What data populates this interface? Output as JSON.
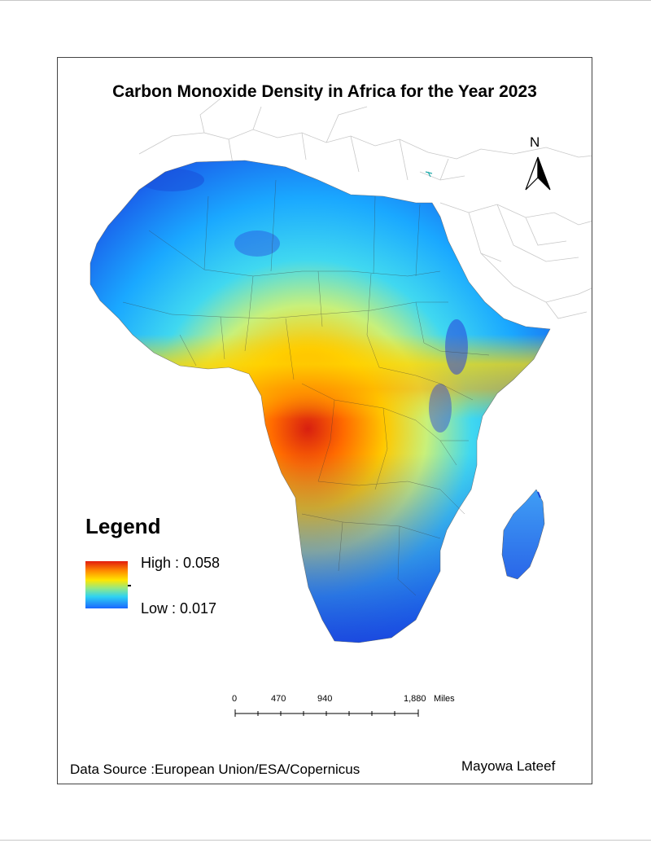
{
  "title": "Carbon Monoxide Density in Africa for the Year 2023",
  "north_arrow": {
    "label": "N",
    "icon": "north-arrow-icon"
  },
  "legend": {
    "title": "Legend",
    "high_label": "High : 0.058",
    "low_label": "Low : 0.017",
    "colors": [
      "#e21b0f",
      "#ff8a00",
      "#ffe600",
      "#8fe88a",
      "#2fd2f2",
      "#1a67ff"
    ]
  },
  "scale_bar": {
    "labels": [
      "0",
      "470",
      "940",
      "1,880"
    ],
    "unit": "Miles"
  },
  "data_source": "Data Source :European Union/ESA/Copernicus",
  "author": "Mayowa Lateef"
}
